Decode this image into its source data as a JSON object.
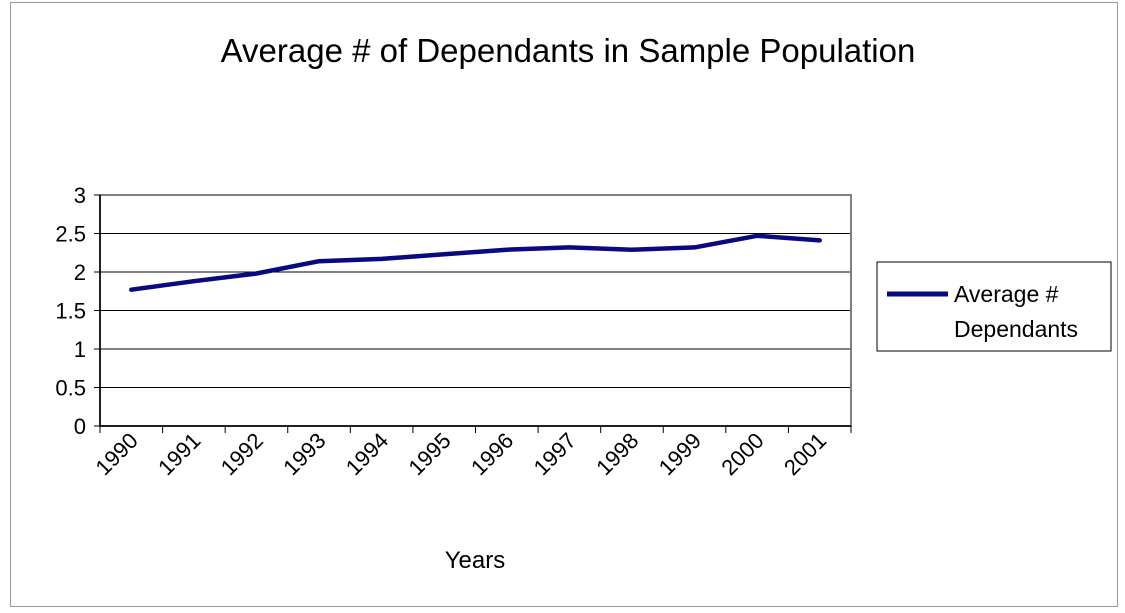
{
  "chart_data": {
    "type": "line",
    "title": "Average # of Dependants in Sample Population",
    "xlabel": "Years",
    "ylabel": "",
    "categories": [
      "1990",
      "1991",
      "1992",
      "1993",
      "1994",
      "1995",
      "1996",
      "1997",
      "1998",
      "1999",
      "2000",
      "2001"
    ],
    "series": [
      {
        "name": "Average # Dependants",
        "name_lines": [
          "Average #",
          "Dependants"
        ],
        "color": "#0a0a80",
        "values": [
          1.77,
          1.88,
          1.98,
          2.14,
          2.17,
          2.23,
          2.29,
          2.32,
          2.29,
          2.32,
          2.47,
          2.41
        ]
      }
    ],
    "ylim": [
      0,
      3
    ],
    "yticks": [
      "0",
      "0.5",
      "1",
      "1.5",
      "2",
      "2.5",
      "3"
    ],
    "grid": true,
    "legend": "right",
    "colors": {
      "plot_border": "#808080",
      "gridline": "#000000",
      "frame_border": "#9a9a9a"
    }
  }
}
